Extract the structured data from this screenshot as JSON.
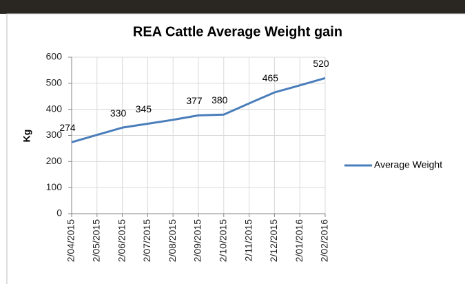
{
  "chart_data": {
    "type": "line",
    "title": "REA Cattle Average Weight gain",
    "y_label": "Kg",
    "categories": [
      "2/04/2015",
      "2/05/2015",
      "2/06/2015",
      "2/07/2015",
      "2/08/2015",
      "2/09/2015",
      "2/10/2015",
      "2/11/2015",
      "2/12/2015",
      "2/01/2016",
      "2/02/2016"
    ],
    "series": [
      {
        "name": "Average Weight",
        "color": "#4a7ebb",
        "values": [
          274,
          302,
          330,
          345,
          360,
          377,
          380,
          423,
          465,
          492,
          520
        ],
        "value_labels": [
          "274",
          null,
          "330",
          "345",
          null,
          "377",
          "380",
          null,
          "465",
          null,
          "520"
        ]
      }
    ],
    "ylim": [
      0,
      600
    ],
    "yticks": [
      0,
      100,
      200,
      300,
      400,
      500,
      600
    ],
    "grid": true,
    "legend": "right"
  }
}
